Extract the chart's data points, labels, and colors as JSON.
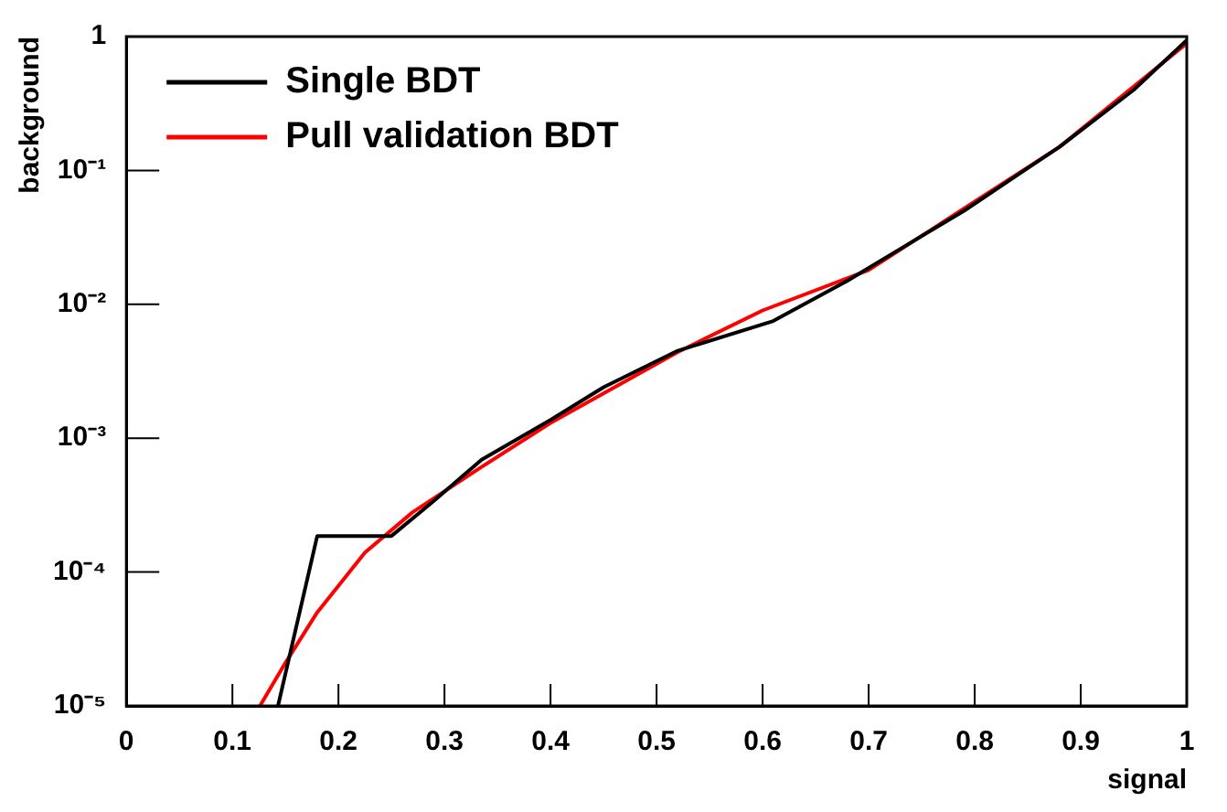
{
  "chart_data": {
    "type": "line",
    "xlabel": "signal",
    "ylabel": "background",
    "log": "y",
    "xlim": [
      0,
      1
    ],
    "ylim": [
      1e-05,
      1
    ],
    "xticks": [
      0,
      0.1,
      0.2,
      0.3,
      0.4,
      0.5,
      0.6,
      0.7,
      0.8,
      0.9,
      1
    ],
    "yticks": [
      {
        "value": 1e-05,
        "label": "10⁻⁵"
      },
      {
        "value": 0.0001,
        "label": "10⁻⁴"
      },
      {
        "value": 0.001,
        "label": "10⁻³"
      },
      {
        "value": 0.01,
        "label": "10⁻²"
      },
      {
        "value": 0.1,
        "label": "10⁻¹"
      },
      1
    ],
    "grid": false,
    "legend": "top left",
    "marker": "none",
    "line_style": "solid",
    "series": [
      {
        "name": "Single BDT",
        "color": "#000000",
        "x": [
          0.143,
          0.18,
          0.25,
          0.29,
          0.335,
          0.4,
          0.45,
          0.52,
          0.61,
          0.68,
          0.74,
          0.79,
          0.84,
          0.88,
          0.95,
          1
        ],
        "values": [
          1e-05,
          0.000186,
          0.000186,
          0.00034,
          0.00069,
          0.00137,
          0.0024,
          0.0045,
          0.0075,
          0.015,
          0.029,
          0.05,
          0.092,
          0.15,
          0.4,
          0.94
        ]
      },
      {
        "name": "Pull validation BDT",
        "color": "#ff0000",
        "x": [
          0.126,
          0.15,
          0.18,
          0.225,
          0.27,
          0.335,
          0.4,
          0.52,
          0.6,
          0.7,
          0.79,
          0.88,
          1
        ],
        "values": [
          1e-05,
          2.1e-05,
          5e-05,
          0.00014,
          0.00028,
          0.00061,
          0.0013,
          0.0044,
          0.009,
          0.018,
          0.052,
          0.15,
          0.89
        ]
      }
    ]
  }
}
